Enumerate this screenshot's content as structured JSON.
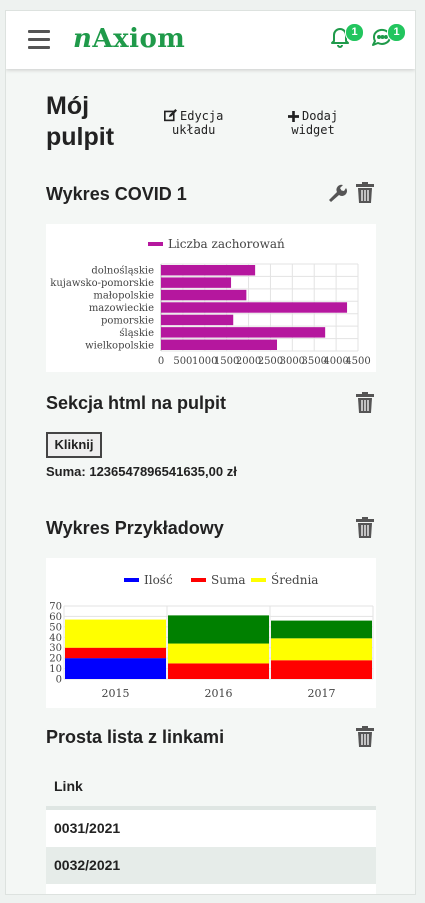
{
  "header": {
    "logo_prefix": "n",
    "logo_main": "Axiom",
    "notifications_count": "1",
    "messages_count": "1"
  },
  "page": {
    "title_line1": "Mój",
    "title_line2": "pulpit",
    "edit_layout_line1": "Edycja",
    "edit_layout_line2": "układu",
    "add_widget_line1": "Dodaj",
    "add_widget_line2": "widget"
  },
  "widgets": {
    "covid": {
      "title": "Wykres COVID 1"
    },
    "html": {
      "title": "Sekcja html na pulpit",
      "button_label": "Kliknij",
      "sum_text": "Suma: 1236547896541635,00 zł"
    },
    "example": {
      "title": "Wykres Przykładowy"
    },
    "links": {
      "title": "Prosta lista z linkami",
      "column_header": "Link",
      "rows": [
        "0031/2021",
        "0032/2021"
      ]
    }
  },
  "chart_data": [
    {
      "type": "bar",
      "orientation": "horizontal",
      "categories": [
        "dolnośląskie",
        "kujawsko-pomorskie",
        "małopolskie",
        "mazowieckie",
        "pomorskie",
        "śląskie",
        "wielkopolskie"
      ],
      "series": [
        {
          "name": "Liczba zachorowań",
          "color": "#b5179e",
          "values": [
            2150,
            1600,
            1950,
            4250,
            1650,
            3750,
            2650
          ]
        }
      ],
      "xlim": [
        0,
        4500
      ],
      "xticks": [
        0,
        500,
        1000,
        1500,
        2000,
        2500,
        3000,
        3500,
        4000,
        4500
      ],
      "legend": "top",
      "grid": true
    },
    {
      "type": "bar",
      "stacked": true,
      "categories": [
        "2015",
        "2016",
        "2017"
      ],
      "series": [
        {
          "name": "Ilość",
          "color": "#0000ff",
          "values": [
            20,
            0,
            0
          ]
        },
        {
          "name": "Suma",
          "color": "#ff0000",
          "values": [
            10,
            15,
            18
          ]
        },
        {
          "name": "Średnia",
          "color": "#ffff00",
          "values": [
            27,
            19,
            21
          ]
        },
        {
          "name": "",
          "color": "#008000",
          "values": [
            0,
            27,
            17
          ]
        }
      ],
      "ylim": [
        0,
        70
      ],
      "yticks": [
        0,
        10,
        20,
        30,
        40,
        50,
        60,
        70
      ],
      "legend": "top",
      "grid": true
    }
  ]
}
